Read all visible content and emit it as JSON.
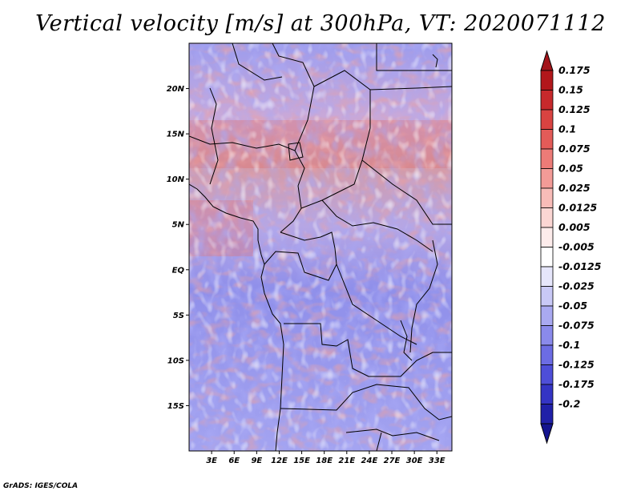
{
  "title": "Vertical velocity [m/s] at 300hPa, VT: 2020071112",
  "credit": "GrADS: IGES/COLA",
  "map": {
    "lon_range": [
      0,
      35
    ],
    "lat_range": [
      -20,
      25
    ],
    "lat_ticks": [
      {
        "value": 20,
        "label": "20N"
      },
      {
        "value": 15,
        "label": "15N"
      },
      {
        "value": 10,
        "label": "10N"
      },
      {
        "value": 5,
        "label": "5N"
      },
      {
        "value": 0,
        "label": "EQ"
      },
      {
        "value": -5,
        "label": "5S"
      },
      {
        "value": -10,
        "label": "10S"
      },
      {
        "value": -15,
        "label": "15S"
      }
    ],
    "lon_ticks": [
      {
        "value": 3,
        "label": "3E"
      },
      {
        "value": 6,
        "label": "6E"
      },
      {
        "value": 9,
        "label": "9E"
      },
      {
        "value": 12,
        "label": "12E"
      },
      {
        "value": 15,
        "label": "15E"
      },
      {
        "value": 18,
        "label": "18E"
      },
      {
        "value": 21,
        "label": "21E"
      },
      {
        "value": 24,
        "label": "24E"
      },
      {
        "value": 27,
        "label": "27E"
      },
      {
        "value": 30,
        "label": "30E"
      },
      {
        "value": 33,
        "label": "33E"
      }
    ]
  },
  "colorbar": {
    "levels": [
      {
        "label": "0.175",
        "color": "#b2171b"
      },
      {
        "label": "0.15",
        "color": "#c7292c"
      },
      {
        "label": "0.125",
        "color": "#d94341"
      },
      {
        "label": "0.1",
        "color": "#e35b58"
      },
      {
        "label": "0.075",
        "color": "#ec7b77"
      },
      {
        "label": "0.05",
        "color": "#f39b97"
      },
      {
        "label": "0.025",
        "color": "#f8bcb8"
      },
      {
        "label": "0.0125",
        "color": "#fbd6d3"
      },
      {
        "label": "0.005",
        "color": "#fdeceb"
      },
      {
        "label": "-0.005",
        "color": "#ffffff"
      },
      {
        "label": "-0.0125",
        "color": "#e6e6fb"
      },
      {
        "label": "-0.025",
        "color": "#c9c9f6"
      },
      {
        "label": "-0.05",
        "color": "#a9a9f1"
      },
      {
        "label": "-0.075",
        "color": "#8a8aeb"
      },
      {
        "label": "-0.1",
        "color": "#6c6ce3"
      },
      {
        "label": "-0.125",
        "color": "#4e4ed8"
      },
      {
        "label": "-0.175",
        "color": "#3434c4"
      },
      {
        "label": "-0.2",
        "color": "#2020a8"
      }
    ],
    "top_color": "#a3141a",
    "bottom_color": "#14148f"
  }
}
